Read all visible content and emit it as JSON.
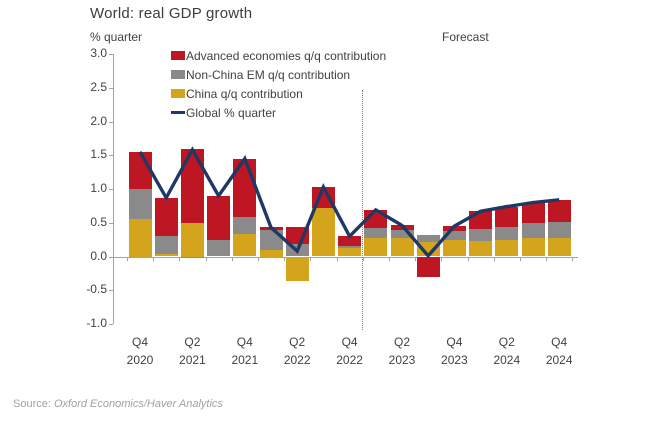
{
  "source": {
    "prefix": "Source: ",
    "italic_text": "Oxford Economics/Haver Analytics"
  },
  "chart_data": {
    "type": "bar",
    "stacked": true,
    "combo_line": true,
    "title": "World: real GDP growth",
    "y_unit_label": "% quarter",
    "forecast_label": "Forecast",
    "forecast_divider_after": "Q4 2022",
    "legend_position": "top-left-inside",
    "grid": false,
    "ylim": [
      -1.0,
      3.0
    ],
    "y_ticks": [
      "3.0",
      "2.5",
      "2.0",
      "1.5",
      "1.0",
      "0.5",
      "0.0",
      "-0.5",
      "-1.0"
    ],
    "x_label_every": 2,
    "axis_color": "#a2a2a2",
    "categories": [
      "Q4 2020",
      "Q1 2021",
      "Q2 2021",
      "Q3 2021",
      "Q4 2021",
      "Q1 2022",
      "Q2 2022",
      "Q3 2022",
      "Q4 2022",
      "Q1 2023",
      "Q2 2023",
      "Q3 2023",
      "Q4 2023",
      "Q1 2024",
      "Q2 2024",
      "Q3 2024",
      "Q4 2024"
    ],
    "series": [
      {
        "key": "advanced",
        "name": "Advanced economies q/q contribution",
        "color": "#be1723",
        "values": [
          0.55,
          0.57,
          1.1,
          0.66,
          0.86,
          0.04,
          0.25,
          0.31,
          0.15,
          0.27,
          0.07,
          -0.31,
          0.07,
          0.26,
          0.31,
          0.3,
          0.33
        ]
      },
      {
        "key": "non-china-em",
        "name": "Non-China EM q/q contribution",
        "color": "#8a8a8a",
        "values": [
          0.45,
          0.26,
          -0.02,
          0.24,
          0.26,
          0.29,
          0.19,
          0.0,
          0.03,
          0.14,
          0.12,
          0.11,
          0.14,
          0.18,
          0.19,
          0.23,
          0.23
        ]
      },
      {
        "key": "china",
        "name": "China q/q contribution",
        "color": "#d4a41c",
        "values": [
          0.55,
          0.04,
          0.5,
          0.0,
          0.33,
          0.1,
          -0.36,
          0.72,
          0.12,
          0.28,
          0.27,
          0.21,
          0.24,
          0.23,
          0.24,
          0.27,
          0.28
        ]
      }
    ],
    "line_series": {
      "name": "Global % quarter",
      "color": "#1f3864",
      "values": [
        1.55,
        0.87,
        1.58,
        0.9,
        1.45,
        0.43,
        0.08,
        1.03,
        0.3,
        0.69,
        0.46,
        0.01,
        0.45,
        0.67,
        0.74,
        0.8,
        0.84
      ]
    }
  }
}
